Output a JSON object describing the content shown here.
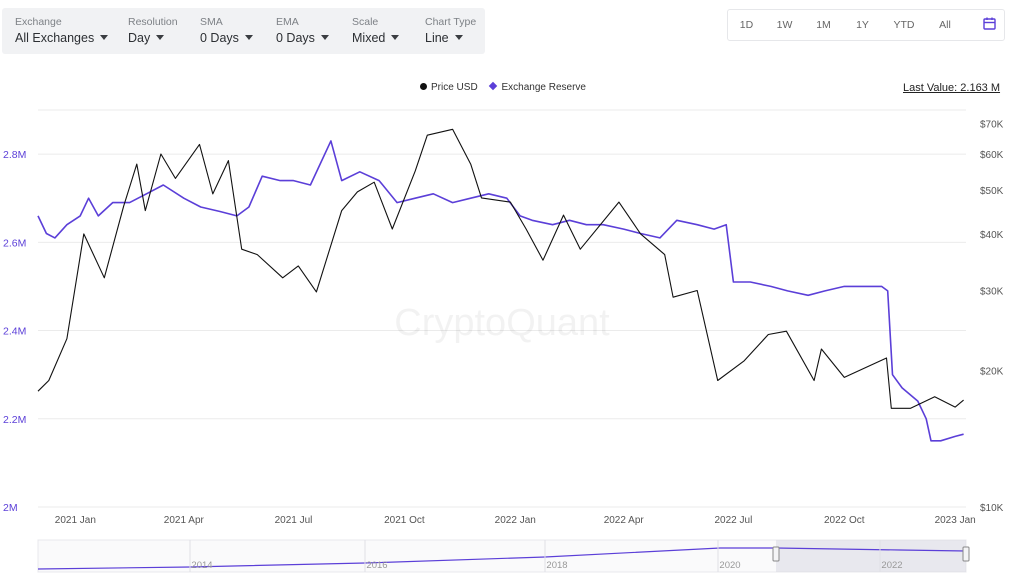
{
  "toolbar": {
    "controls": [
      {
        "label": "Exchange",
        "value": "All Exchanges"
      },
      {
        "label": "Resolution",
        "value": "Day"
      },
      {
        "label": "SMA",
        "value": "0 Days"
      },
      {
        "label": "EMA",
        "value": "0 Days"
      },
      {
        "label": "Scale",
        "value": "Mixed"
      },
      {
        "label": "Chart Type",
        "value": "Line"
      }
    ]
  },
  "ranges": [
    "1D",
    "1W",
    "1M",
    "1Y",
    "YTD",
    "All"
  ],
  "calendar_icon": "calendar-icon",
  "watermark": "CryptoQuant",
  "last_value": "Last Value: 2.163 M",
  "navigator": {
    "tick_labels": [
      "2014",
      "2016",
      "2018",
      "2020",
      "2022"
    ],
    "selected_range": [
      "2020-12",
      "2023-01"
    ]
  },
  "colors": {
    "price": "#111111",
    "reserve": "#5b3fd8",
    "grid": "#ebebeb",
    "left_axis": "#5b3fd8"
  },
  "chart_data": {
    "type": "line",
    "title": "",
    "legend": [
      "Price USD",
      "Exchange Reserve"
    ],
    "legend_position": "top-center",
    "grid": true,
    "x_ticks": [
      "2021 Jan",
      "2021 Apr",
      "2021 Jul",
      "2021 Oct",
      "2022 Jan",
      "2022 Apr",
      "2022 Jul",
      "2022 Oct",
      "2023 Jan"
    ],
    "xlim": [
      "2020-12-01",
      "2023-01-10"
    ],
    "y_left": {
      "label": "",
      "ticks": [
        "2M",
        "2.2M",
        "2.4M",
        "2.6M",
        "2.8M"
      ],
      "range": [
        2.0,
        2.9
      ],
      "unit": "M"
    },
    "y_right": {
      "label": "",
      "scale": "log",
      "ticks": [
        "$10K",
        "$20K",
        "$30K",
        "$40K",
        "$50K",
        "$60K",
        "$70K"
      ],
      "range": [
        10000,
        75000
      ]
    },
    "series": [
      {
        "name": "Exchange Reserve",
        "axis": "left",
        "unit": "M",
        "points": [
          [
            "2020-12-01",
            2.66
          ],
          [
            "2020-12-08",
            2.62
          ],
          [
            "2020-12-15",
            2.61
          ],
          [
            "2020-12-25",
            2.64
          ],
          [
            "2021-01-05",
            2.66
          ],
          [
            "2021-01-12",
            2.7
          ],
          [
            "2021-01-20",
            2.66
          ],
          [
            "2021-02-01",
            2.69
          ],
          [
            "2021-02-15",
            2.69
          ],
          [
            "2021-03-01",
            2.71
          ],
          [
            "2021-03-15",
            2.73
          ],
          [
            "2021-04-01",
            2.7
          ],
          [
            "2021-04-15",
            2.68
          ],
          [
            "2021-05-01",
            2.67
          ],
          [
            "2021-05-15",
            2.66
          ],
          [
            "2021-05-25",
            2.68
          ],
          [
            "2021-06-05",
            2.75
          ],
          [
            "2021-06-20",
            2.74
          ],
          [
            "2021-07-01",
            2.74
          ],
          [
            "2021-07-15",
            2.73
          ],
          [
            "2021-08-01",
            2.83
          ],
          [
            "2021-08-10",
            2.74
          ],
          [
            "2021-08-25",
            2.76
          ],
          [
            "2021-09-10",
            2.74
          ],
          [
            "2021-09-25",
            2.69
          ],
          [
            "2021-10-10",
            2.7
          ],
          [
            "2021-10-25",
            2.71
          ],
          [
            "2021-11-10",
            2.69
          ],
          [
            "2021-11-25",
            2.7
          ],
          [
            "2021-12-10",
            2.71
          ],
          [
            "2021-12-25",
            2.7
          ],
          [
            "2022-01-05",
            2.66
          ],
          [
            "2022-01-15",
            2.65
          ],
          [
            "2022-02-01",
            2.64
          ],
          [
            "2022-02-15",
            2.65
          ],
          [
            "2022-03-01",
            2.64
          ],
          [
            "2022-03-15",
            2.64
          ],
          [
            "2022-04-01",
            2.63
          ],
          [
            "2022-04-15",
            2.62
          ],
          [
            "2022-05-01",
            2.61
          ],
          [
            "2022-05-15",
            2.65
          ],
          [
            "2022-06-01",
            2.64
          ],
          [
            "2022-06-15",
            2.63
          ],
          [
            "2022-06-25",
            2.64
          ],
          [
            "2022-07-01",
            2.51
          ],
          [
            "2022-07-15",
            2.51
          ],
          [
            "2022-08-01",
            2.5
          ],
          [
            "2022-08-15",
            2.49
          ],
          [
            "2022-09-01",
            2.48
          ],
          [
            "2022-09-15",
            2.49
          ],
          [
            "2022-10-01",
            2.5
          ],
          [
            "2022-10-15",
            2.5
          ],
          [
            "2022-11-01",
            2.5
          ],
          [
            "2022-11-06",
            2.49
          ],
          [
            "2022-11-10",
            2.3
          ],
          [
            "2022-11-18",
            2.27
          ],
          [
            "2022-12-01",
            2.24
          ],
          [
            "2022-12-08",
            2.2
          ],
          [
            "2022-12-12",
            2.15
          ],
          [
            "2022-12-20",
            2.15
          ],
          [
            "2023-01-01",
            2.16
          ],
          [
            "2023-01-08",
            2.165
          ]
        ]
      },
      {
        "name": "Price USD",
        "axis": "right",
        "unit": "USD",
        "points": [
          [
            "2020-12-01",
            18000
          ],
          [
            "2020-12-10",
            19000
          ],
          [
            "2020-12-25",
            23500
          ],
          [
            "2021-01-08",
            40000
          ],
          [
            "2021-01-25",
            32000
          ],
          [
            "2021-02-10",
            46000
          ],
          [
            "2021-02-21",
            57000
          ],
          [
            "2021-02-28",
            45000
          ],
          [
            "2021-03-13",
            60000
          ],
          [
            "2021-03-25",
            53000
          ],
          [
            "2021-04-14",
            63000
          ],
          [
            "2021-04-25",
            49000
          ],
          [
            "2021-05-08",
            58000
          ],
          [
            "2021-05-19",
            37000
          ],
          [
            "2021-06-01",
            36000
          ],
          [
            "2021-06-22",
            32000
          ],
          [
            "2021-07-05",
            34000
          ],
          [
            "2021-07-20",
            29800
          ],
          [
            "2021-08-10",
            45000
          ],
          [
            "2021-08-23",
            49500
          ],
          [
            "2021-09-06",
            52000
          ],
          [
            "2021-09-21",
            41000
          ],
          [
            "2021-10-10",
            55000
          ],
          [
            "2021-10-20",
            66000
          ],
          [
            "2021-11-10",
            68000
          ],
          [
            "2021-11-25",
            57000
          ],
          [
            "2021-12-04",
            48000
          ],
          [
            "2021-12-28",
            47000
          ],
          [
            "2022-01-10",
            41000
          ],
          [
            "2022-01-24",
            35000
          ],
          [
            "2022-02-10",
            44000
          ],
          [
            "2022-02-24",
            37000
          ],
          [
            "2022-03-28",
            47000
          ],
          [
            "2022-04-15",
            40000
          ],
          [
            "2022-05-05",
            36000
          ],
          [
            "2022-05-12",
            29000
          ],
          [
            "2022-06-01",
            30000
          ],
          [
            "2022-06-18",
            19000
          ],
          [
            "2022-07-10",
            21000
          ],
          [
            "2022-07-30",
            24000
          ],
          [
            "2022-08-14",
            24400
          ],
          [
            "2022-09-06",
            19000
          ],
          [
            "2022-09-12",
            22300
          ],
          [
            "2022-10-01",
            19300
          ],
          [
            "2022-11-05",
            21300
          ],
          [
            "2022-11-09",
            16500
          ],
          [
            "2022-11-25",
            16500
          ],
          [
            "2022-12-15",
            17500
          ],
          [
            "2023-01-01",
            16600
          ],
          [
            "2023-01-08",
            17200
          ]
        ]
      }
    ]
  }
}
